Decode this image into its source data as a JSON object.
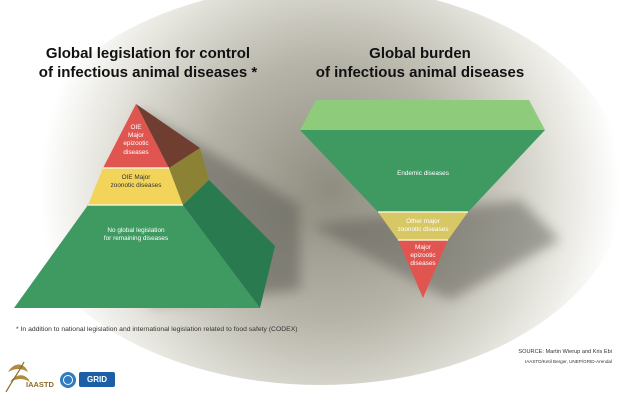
{
  "left_title": {
    "line1": "Global legislation for control",
    "line2": "of infectious animal diseases *"
  },
  "right_title": {
    "line1": "Global burden",
    "line2": "of infectious animal diseases"
  },
  "pyramid": {
    "top": {
      "line1": "OIE",
      "line2": "Major",
      "line3": "epizootic",
      "line4": "diseases"
    },
    "middle": {
      "line1": "OIE Major",
      "line2": "zoonotic diseases"
    },
    "bottom": {
      "line1": "No global legislation",
      "line2": "for remaining diseases"
    }
  },
  "inverted_pyramid": {
    "top": {
      "line1": "Endemic diseases"
    },
    "middle": {
      "line1": "Other major",
      "line2": "zoonotic diseases"
    },
    "bottom": {
      "line1": "Major",
      "line2": "epizootic",
      "line3": "diseases"
    }
  },
  "footnote": "* In addition to national legislation and international legislation related to food safety (CODEX)",
  "source": "SOURCE: Martin Wierup and Kris Ebi",
  "credit": "IAASTD/Ketil Berger, UNEP/GRID-Arendal",
  "logos": {
    "iaastd": "IAASTD",
    "grid": "GRID"
  },
  "colors": {
    "red": "#e15550",
    "yellow": "#f3d45a",
    "green": "#3f9a62",
    "green_light": "#8ecb7a",
    "tan": "#d8c765"
  }
}
